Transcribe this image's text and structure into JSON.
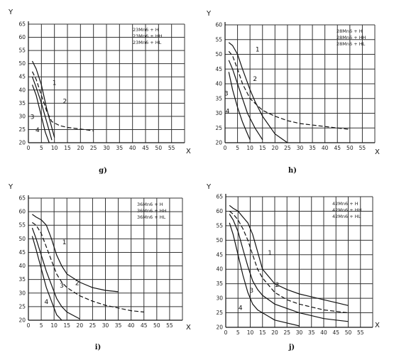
{
  "chart_data": [
    {
      "type": "line",
      "panel_label": "g)",
      "xlabel": "X",
      "ylabel": "Y",
      "xlim": [
        0,
        60
      ],
      "ylim": [
        20,
        65
      ],
      "xticks": [
        0,
        5,
        10,
        15,
        20,
        25,
        30,
        35,
        40,
        45,
        50,
        55
      ],
      "yticks": [
        20,
        25,
        30,
        35,
        40,
        45,
        50,
        55,
        60,
        65
      ],
      "legend_lines": [
        "23Mn6 + H",
        "23Mn6 + HH",
        "23Mn6 + HL"
      ],
      "grid": true,
      "series": [
        {
          "name": "1",
          "style": "solid",
          "x": [
            1.5,
            3,
            5,
            7,
            10
          ],
          "y": [
            51,
            48,
            42,
            33,
            22
          ]
        },
        {
          "name": "2",
          "style": "dashed",
          "x": [
            1.5,
            3,
            5,
            7,
            9,
            12,
            15,
            20,
            25
          ],
          "y": [
            47,
            44,
            38,
            32,
            28,
            26.5,
            25.8,
            25.2,
            24.5
          ]
        },
        {
          "name": "3",
          "style": "solid",
          "x": [
            1.5,
            3,
            5,
            7,
            9
          ],
          "y": [
            45,
            41,
            35,
            28,
            21
          ]
        },
        {
          "name": "4",
          "style": "solid",
          "x": [
            1.5,
            3,
            5,
            6.5,
            8
          ],
          "y": [
            42,
            38,
            30,
            24,
            20
          ]
        }
      ],
      "curve_labels": [
        {
          "text": "1",
          "x": 10,
          "y": 42
        },
        {
          "text": "2",
          "x": 14,
          "y": 35
        },
        {
          "text": "3",
          "x": 1.5,
          "y": 29
        },
        {
          "text": "4",
          "x": 3.5,
          "y": 24
        }
      ]
    },
    {
      "type": "line",
      "panel_label": "h)",
      "xlabel": "X",
      "ylabel": "Y",
      "xlim": [
        0,
        60
      ],
      "ylim": [
        20,
        60
      ],
      "xticks": [
        0,
        5,
        10,
        15,
        20,
        25,
        30,
        35,
        40,
        45,
        50,
        55
      ],
      "yticks": [
        20,
        25,
        30,
        35,
        40,
        45,
        50,
        55,
        60
      ],
      "legend_lines": [
        "28Mn6 + H",
        "28Mn6 + HH",
        "28Mn6 + HL"
      ],
      "grid": true,
      "series": [
        {
          "name": "1",
          "style": "solid",
          "x": [
            1.5,
            3,
            5,
            7,
            10,
            12,
            15,
            20,
            25
          ],
          "y": [
            54,
            53,
            50,
            45,
            38,
            34,
            29,
            23,
            20
          ]
        },
        {
          "name": "2",
          "style": "dashed",
          "x": [
            1.5,
            3,
            5,
            7,
            10,
            15,
            20,
            25,
            30,
            40,
            45,
            50
          ],
          "y": [
            51,
            49.5,
            45,
            40,
            35,
            31,
            29,
            27.5,
            26.5,
            25.5,
            25,
            24.5
          ]
        },
        {
          "name": "3",
          "style": "solid",
          "x": [
            1.5,
            3,
            5,
            7,
            9,
            12,
            15
          ],
          "y": [
            48,
            45,
            40,
            35,
            30,
            25,
            21
          ]
        },
        {
          "name": "4",
          "style": "solid",
          "x": [
            1.5,
            3,
            5,
            7,
            9,
            10
          ],
          "y": [
            44,
            38,
            32,
            27,
            23,
            21
          ]
        }
      ],
      "curve_labels": [
        {
          "text": "1",
          "x": 13,
          "y": 51
        },
        {
          "text": "2",
          "x": 12,
          "y": 41
        },
        {
          "text": "3",
          "x": 0.5,
          "y": 36
        },
        {
          "text": "4",
          "x": 1,
          "y": 30
        }
      ]
    },
    {
      "type": "line",
      "panel_label": "i)",
      "xlabel": "X",
      "ylabel": "Y",
      "xlim": [
        0,
        60
      ],
      "ylim": [
        20,
        65
      ],
      "xticks": [
        0,
        5,
        10,
        15,
        20,
        25,
        30,
        35,
        40,
        45,
        50,
        55
      ],
      "yticks": [
        20,
        25,
        30,
        35,
        40,
        45,
        50,
        55,
        60,
        65
      ],
      "legend_lines": [
        "36Mn6 + H",
        "36Mn6 + HH",
        "36Mn6 + HL"
      ],
      "grid": true,
      "series": [
        {
          "name": "1",
          "style": "solid",
          "x": [
            1.5,
            3,
            5,
            7,
            9,
            11,
            13,
            15,
            20,
            25,
            30,
            35
          ],
          "y": [
            59,
            58,
            57,
            55,
            50,
            44,
            40,
            37,
            34,
            32,
            31,
            30.5
          ]
        },
        {
          "name": "2",
          "style": "dashed",
          "x": [
            1.5,
            3,
            5,
            7,
            9,
            11,
            13,
            15,
            20,
            25,
            30,
            35,
            40,
            45
          ],
          "y": [
            56,
            55,
            52,
            47,
            42,
            37,
            34,
            32,
            29,
            27,
            25.5,
            24.5,
            23.5,
            23
          ]
        },
        {
          "name": "3",
          "style": "solid",
          "x": [
            1.5,
            3,
            5,
            7,
            9,
            11,
            13,
            15,
            20
          ],
          "y": [
            54,
            50,
            44,
            38,
            33,
            28,
            25,
            23,
            20.5
          ]
        },
        {
          "name": "4",
          "style": "solid",
          "x": [
            1.5,
            3,
            5,
            7,
            9,
            11,
            13
          ],
          "y": [
            51,
            46,
            39,
            32,
            27,
            22,
            20
          ]
        }
      ],
      "curve_labels": [
        {
          "text": "1",
          "x": 14,
          "y": 48
        },
        {
          "text": "2",
          "x": 19,
          "y": 33
        },
        {
          "text": "3",
          "x": 13,
          "y": 32
        },
        {
          "text": "4",
          "x": 7,
          "y": 26
        }
      ]
    },
    {
      "type": "line",
      "panel_label": "j)",
      "xlabel": "X",
      "ylabel": "Y",
      "xlim": [
        0,
        60
      ],
      "ylim": [
        20,
        65
      ],
      "xticks": [
        0,
        5,
        10,
        15,
        20,
        25,
        30,
        35,
        40,
        45,
        50,
        55
      ],
      "yticks": [
        20,
        25,
        30,
        35,
        40,
        45,
        50,
        55,
        60,
        65
      ],
      "legend_lines": [
        "42Mn6 + H",
        "42Mn6 + HH",
        "42Mn6 + HL"
      ],
      "grid": true,
      "series": [
        {
          "name": "1",
          "style": "solid",
          "x": [
            1.5,
            3,
            5,
            7,
            9,
            11,
            13,
            15,
            20,
            25,
            30,
            35,
            40,
            45,
            50
          ],
          "y": [
            62,
            61,
            60,
            58,
            56,
            52,
            46,
            40,
            35,
            33,
            31.5,
            30.5,
            29.5,
            28.5,
            27.5
          ]
        },
        {
          "name": "2",
          "style": "dashed",
          "x": [
            1.5,
            3,
            5,
            7,
            9,
            11,
            13,
            15,
            20,
            25,
            30,
            35,
            40,
            45,
            50
          ],
          "y": [
            60,
            59,
            57,
            54,
            50,
            45,
            40,
            37,
            32,
            29.5,
            28,
            27,
            26,
            25.5,
            25
          ]
        },
        {
          "name": "3",
          "style": "solid",
          "x": [
            1.5,
            3,
            5,
            7,
            9,
            11,
            13,
            15,
            20,
            25,
            30,
            35,
            40,
            45,
            50
          ],
          "y": [
            59,
            57,
            53,
            47,
            41,
            36,
            33,
            31,
            28,
            26.5,
            25,
            24,
            23,
            22.5,
            22
          ]
        },
        {
          "name": "4",
          "style": "solid",
          "x": [
            1.5,
            3,
            5,
            7,
            9,
            11,
            13,
            15,
            20,
            25,
            30
          ],
          "y": [
            56,
            52,
            45,
            38,
            32,
            28,
            26,
            25,
            22.5,
            21.5,
            20.5
          ]
        }
      ],
      "curve_labels": [
        {
          "text": "1",
          "x": 18,
          "y": 45
        },
        {
          "text": "2",
          "x": 21,
          "y": 34
        },
        {
          "text": "3",
          "x": 10.5,
          "y": 32
        },
        {
          "text": "4",
          "x": 6,
          "y": 26
        }
      ]
    }
  ]
}
